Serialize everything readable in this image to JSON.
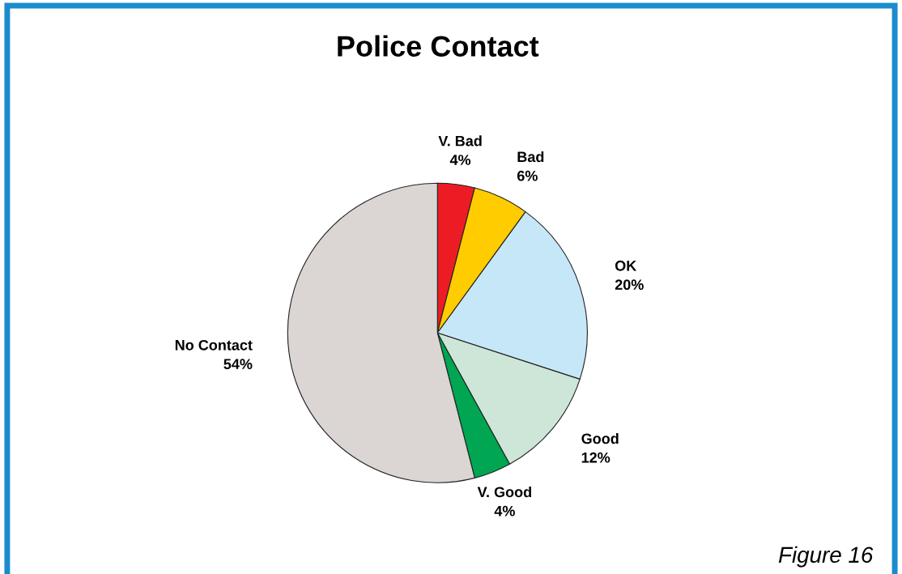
{
  "chart_data": {
    "type": "pie",
    "title": "Police Contact",
    "categories": [
      "V. Bad",
      "Bad",
      "OK",
      "Good",
      "V. Good",
      "No Contact"
    ],
    "values": [
      4,
      6,
      20,
      12,
      4,
      54
    ],
    "value_labels": [
      "4%",
      "6%",
      "20%",
      "12%",
      "4%",
      "54%"
    ],
    "colors": [
      "#ed1c24",
      "#ffcc00",
      "#c6e7f8",
      "#cde6d7",
      "#00a651",
      "#dbd6d4"
    ],
    "annotations": [
      "Figure 16"
    ]
  }
}
